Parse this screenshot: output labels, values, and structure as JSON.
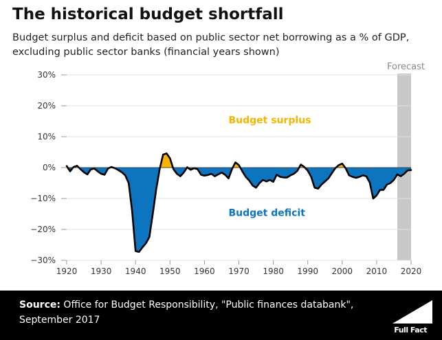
{
  "title": "The historical budget shortfall",
  "subtitle": "Budget surplus and deficit based on public sector net borrowing as a % of GDP, excluding public sector banks (financial years shown)",
  "footer": {
    "source_label": "Source:",
    "source_text": "Office for Budget Responsibility, \"Public finances databank\", September 2017",
    "logo_text": "Full Fact"
  },
  "colors": {
    "surplus": "#f7b500",
    "deficit": "#0d74bf",
    "forecast_band": "#c8c8c8",
    "line": "#000000",
    "footer_bg": "#000000"
  },
  "chart_data": {
    "type": "area",
    "x": [
      1920,
      1921,
      1922,
      1923,
      1924,
      1925,
      1926,
      1927,
      1928,
      1929,
      1930,
      1931,
      1932,
      1933,
      1934,
      1935,
      1936,
      1937,
      1938,
      1939,
      1940,
      1941,
      1942,
      1943,
      1944,
      1945,
      1946,
      1947,
      1948,
      1949,
      1950,
      1951,
      1952,
      1953,
      1954,
      1955,
      1956,
      1957,
      1958,
      1959,
      1960,
      1961,
      1962,
      1963,
      1964,
      1965,
      1966,
      1967,
      1968,
      1969,
      1970,
      1971,
      1972,
      1973,
      1974,
      1975,
      1976,
      1977,
      1978,
      1979,
      1980,
      1981,
      1982,
      1983,
      1984,
      1985,
      1986,
      1987,
      1988,
      1989,
      1990,
      1991,
      1992,
      1993,
      1994,
      1995,
      1996,
      1997,
      1998,
      1999,
      2000,
      2001,
      2002,
      2003,
      2004,
      2005,
      2006,
      2007,
      2008,
      2009,
      2010,
      2011,
      2012,
      2013,
      2014,
      2015,
      2016,
      2017,
      2018,
      2019,
      2020
    ],
    "values": [
      0.5,
      -1.2,
      0.2,
      0.6,
      -0.5,
      -1.5,
      -2.2,
      -0.6,
      -0.3,
      -1.2,
      -2.0,
      -2.3,
      -0.3,
      0.2,
      -0.2,
      -0.8,
      -1.5,
      -2.5,
      -5.0,
      -14.0,
      -27.0,
      -27.3,
      -25.8,
      -24.5,
      -22.5,
      -15.0,
      -7.0,
      -0.5,
      4.2,
      4.6,
      3.0,
      -0.5,
      -2.0,
      -2.8,
      -1.6,
      0.1,
      -0.7,
      -0.2,
      -0.5,
      -2.3,
      -2.6,
      -2.4,
      -2.0,
      -2.8,
      -2.2,
      -1.6,
      -2.3,
      -3.5,
      -0.5,
      1.7,
      0.8,
      -1.2,
      -3.0,
      -4.2,
      -5.8,
      -6.5,
      -5.0,
      -4.0,
      -4.5,
      -4.0,
      -4.6,
      -2.3,
      -3.0,
      -3.2,
      -3.2,
      -2.5,
      -2.0,
      -1.0,
      1.0,
      0.2,
      -1.0,
      -3.0,
      -6.5,
      -6.8,
      -5.5,
      -4.5,
      -3.5,
      -1.8,
      -0.2,
      0.8,
      1.3,
      -0.2,
      -2.5,
      -3.0,
      -3.3,
      -3.0,
      -2.5,
      -2.8,
      -4.8,
      -10.0,
      -9.0,
      -7.2,
      -7.2,
      -5.5,
      -5.0,
      -4.0,
      -2.2,
      -2.8,
      -2.0,
      -0.9,
      -0.8
    ],
    "forecast_from": 2016,
    "forecast_to": 2020,
    "xlim": [
      1920,
      2020
    ],
    "ylim": [
      -30,
      30
    ],
    "xticks": [
      1920,
      1930,
      1940,
      1950,
      1960,
      1970,
      1980,
      1990,
      2000,
      2010,
      2020
    ],
    "xtick_labels": [
      "1920",
      "1930",
      "1940",
      "1950",
      "1960",
      "1970",
      "1980",
      "1990",
      "2000",
      "2010",
      "2020"
    ],
    "yticks": [
      30,
      20,
      10,
      0,
      -10,
      -20,
      -30
    ],
    "ytick_labels": [
      "30%",
      "20%",
      "10%",
      "0%",
      "−10%",
      "−20%",
      "−30%"
    ],
    "forecast_label": "Forecast",
    "annotations": [
      {
        "text": "Budget surplus",
        "x": 1967,
        "y": 15.5,
        "color": "surplus"
      },
      {
        "text": "Budget deficit",
        "x": 1967,
        "y": -14.5,
        "color": "deficit"
      }
    ],
    "grid": "horizontal"
  }
}
